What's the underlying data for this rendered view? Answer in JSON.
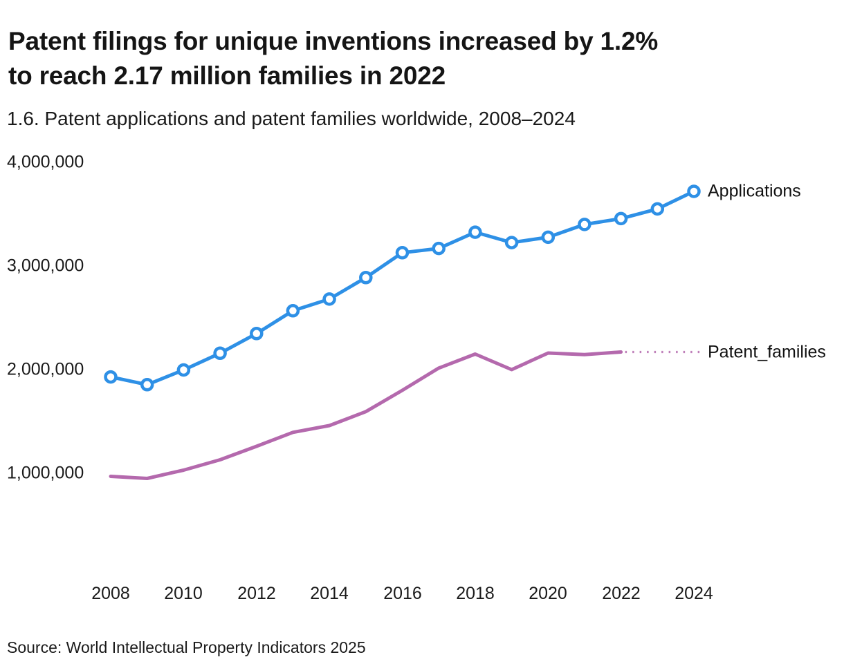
{
  "header": {
    "title_line1": "Patent filings for unique inventions increased by 1.2%",
    "title_line2": "to reach 2.17 million families in 2022",
    "subtitle": "1.6. Patent applications and patent families worldwide, 2008–2024"
  },
  "footer": {
    "source": "Source: World Intellectual Property Indicators 2025"
  },
  "chart_data": {
    "type": "line",
    "title": "Patent filings for unique inventions increased by 1.2% to reach 2.17 million families in 2022",
    "subtitle": "1.6. Patent applications and patent families worldwide, 2008–2024",
    "grid": false,
    "legend_position": "end-of-line-labels",
    "x_range": [
      2008,
      2024
    ],
    "ylim": [
      1000000,
      4000000
    ],
    "x_ticks": [
      "2008",
      "2010",
      "2012",
      "2014",
      "2016",
      "2018",
      "2020",
      "2022",
      "2024"
    ],
    "y_ticks": [
      "4,000,000",
      "3,000,000",
      "2,000,000",
      "1,000,000"
    ],
    "y_tick_values": [
      4000000,
      3000000,
      2000000,
      1000000
    ],
    "series": [
      {
        "label": "Applications",
        "color": "#2E90E6",
        "marker": "circle",
        "dotted_leader": false,
        "years": [
          2008,
          2009,
          2010,
          2011,
          2012,
          2013,
          2014,
          2015,
          2016,
          2017,
          2018,
          2019,
          2020,
          2021,
          2022,
          2023,
          2024
        ],
        "values": [
          1929000,
          1855000,
          1997000,
          2158000,
          2348000,
          2568000,
          2681000,
          2888000,
          3128000,
          3169000,
          3326000,
          3226000,
          3277000,
          3401000,
          3457000,
          3551000,
          3720000
        ]
      },
      {
        "label": "Patent_families",
        "color": "#B469AD",
        "marker": "none",
        "dotted_leader": true,
        "years": [
          2008,
          2009,
          2010,
          2011,
          2012,
          2013,
          2014,
          2015,
          2016,
          2017,
          2018,
          2019,
          2020,
          2021,
          2022
        ],
        "values": [
          970000,
          950000,
          1030000,
          1130000,
          1260000,
          1395000,
          1460000,
          1595000,
          1800000,
          2015000,
          2150000,
          2000000,
          2160000,
          2145000,
          2170000
        ]
      }
    ]
  }
}
